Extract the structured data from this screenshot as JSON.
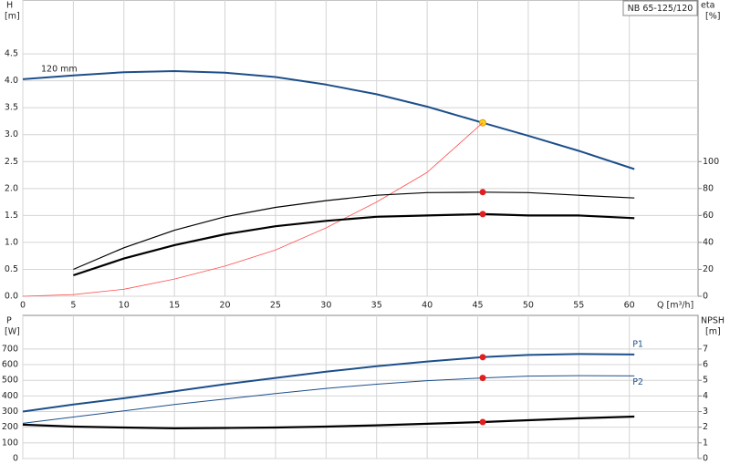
{
  "chart_data": [
    {
      "type": "line",
      "label_box": "NB 65-125/120",
      "ylabel": "H",
      "yunit": "[m]",
      "y2label": "eta",
      "y2unit": "[%]",
      "xlabel": "Q [m³/h]",
      "x": [
        0,
        5,
        10,
        15,
        20,
        25,
        30,
        35,
        40,
        45.5,
        50,
        55,
        60.5
      ],
      "xlim": [
        0,
        66.8
      ],
      "xticks": [
        0,
        5,
        10,
        15,
        20,
        25,
        30,
        35,
        40,
        45,
        50,
        55,
        60
      ],
      "ylim": [
        0,
        5.5
      ],
      "yticks": [
        {
          "value": 0,
          "label": "0.0"
        },
        0.5,
        {
          "value": 1,
          "label": "1.0"
        },
        1.5,
        {
          "value": 2,
          "label": "2.0"
        },
        2.5,
        {
          "value": 3,
          "label": "3.0"
        },
        3.5,
        {
          "value": 4,
          "label": "4.0"
        },
        4.5
      ],
      "y2lim": [
        0,
        220
      ],
      "y2ticks": [
        0,
        20,
        40,
        60,
        80,
        100
      ],
      "grid": true,
      "duty_x": 45.5,
      "series_label_at": "start",
      "series": [
        {
          "name": "120 mm",
          "color": "#1c4f8a",
          "line_width": 2,
          "point_color": "#ffd21f",
          "values": [
            4.03,
            4.1,
            4.16,
            4.18,
            4.15,
            4.07,
            3.93,
            3.75,
            3.52,
            3.22,
            2.98,
            2.7,
            2.36
          ]
        },
        {
          "color": "#ff5050",
          "line_width": 0.8,
          "values": [
            0,
            0.03,
            0.13,
            0.32,
            0.56,
            0.86,
            1.27,
            1.75,
            2.3,
            3.22,
            null,
            null,
            null
          ]
        },
        {
          "color": "#000000",
          "line_width": 1.2,
          "axis": "y2",
          "point_color": "#e02020",
          "values": [
            null,
            20,
            36,
            49,
            59,
            66,
            71,
            75,
            77,
            77.3,
            77,
            75,
            73
          ]
        },
        {
          "color": "#000000",
          "line_width": 2.2,
          "axis": "y2",
          "point_color": "#e02020",
          "values": [
            null,
            15.6,
            28,
            38,
            46,
            52,
            56,
            59,
            60,
            61,
            60,
            60,
            58
          ]
        }
      ]
    },
    {
      "type": "line",
      "ylabel": "P",
      "yunit": "[W]",
      "y2label": "NPSH",
      "y2unit": "[m]",
      "x": [
        0,
        5,
        10,
        15,
        20,
        25,
        30,
        35,
        40,
        45.5,
        50,
        55,
        60.5
      ],
      "xlim": [
        0,
        66.8
      ],
      "ylim": [
        0,
        915
      ],
      "yticks": [
        0,
        100,
        200,
        300,
        400,
        500,
        600,
        700
      ],
      "y2lim": [
        0,
        9.15
      ],
      "y2ticks": [
        0,
        1,
        2,
        3,
        4,
        5,
        6,
        7
      ],
      "grid": true,
      "duty_x": 45.5,
      "series_label_at": "end",
      "series": [
        {
          "name": "P1",
          "color": "#1c4f8a",
          "line_width": 2,
          "point_color": "#e02020",
          "values": [
            300,
            345,
            385,
            430,
            475,
            515,
            555,
            590,
            620,
            648,
            662,
            668,
            665
          ]
        },
        {
          "name": "P2",
          "color": "#1c4f8a",
          "line_width": 1,
          "point_color": "#e02020",
          "values": [
            225,
            265,
            305,
            345,
            380,
            415,
            448,
            475,
            498,
            515,
            527,
            530,
            528
          ]
        },
        {
          "color": "#000000",
          "line_width": 2.2,
          "axis": "y2",
          "point_color": "#e02020",
          "values": [
            2.16,
            2.04,
            1.98,
            1.93,
            1.95,
            1.98,
            2.04,
            2.12,
            2.22,
            2.33,
            2.45,
            2.57,
            2.68
          ]
        }
      ]
    }
  ]
}
